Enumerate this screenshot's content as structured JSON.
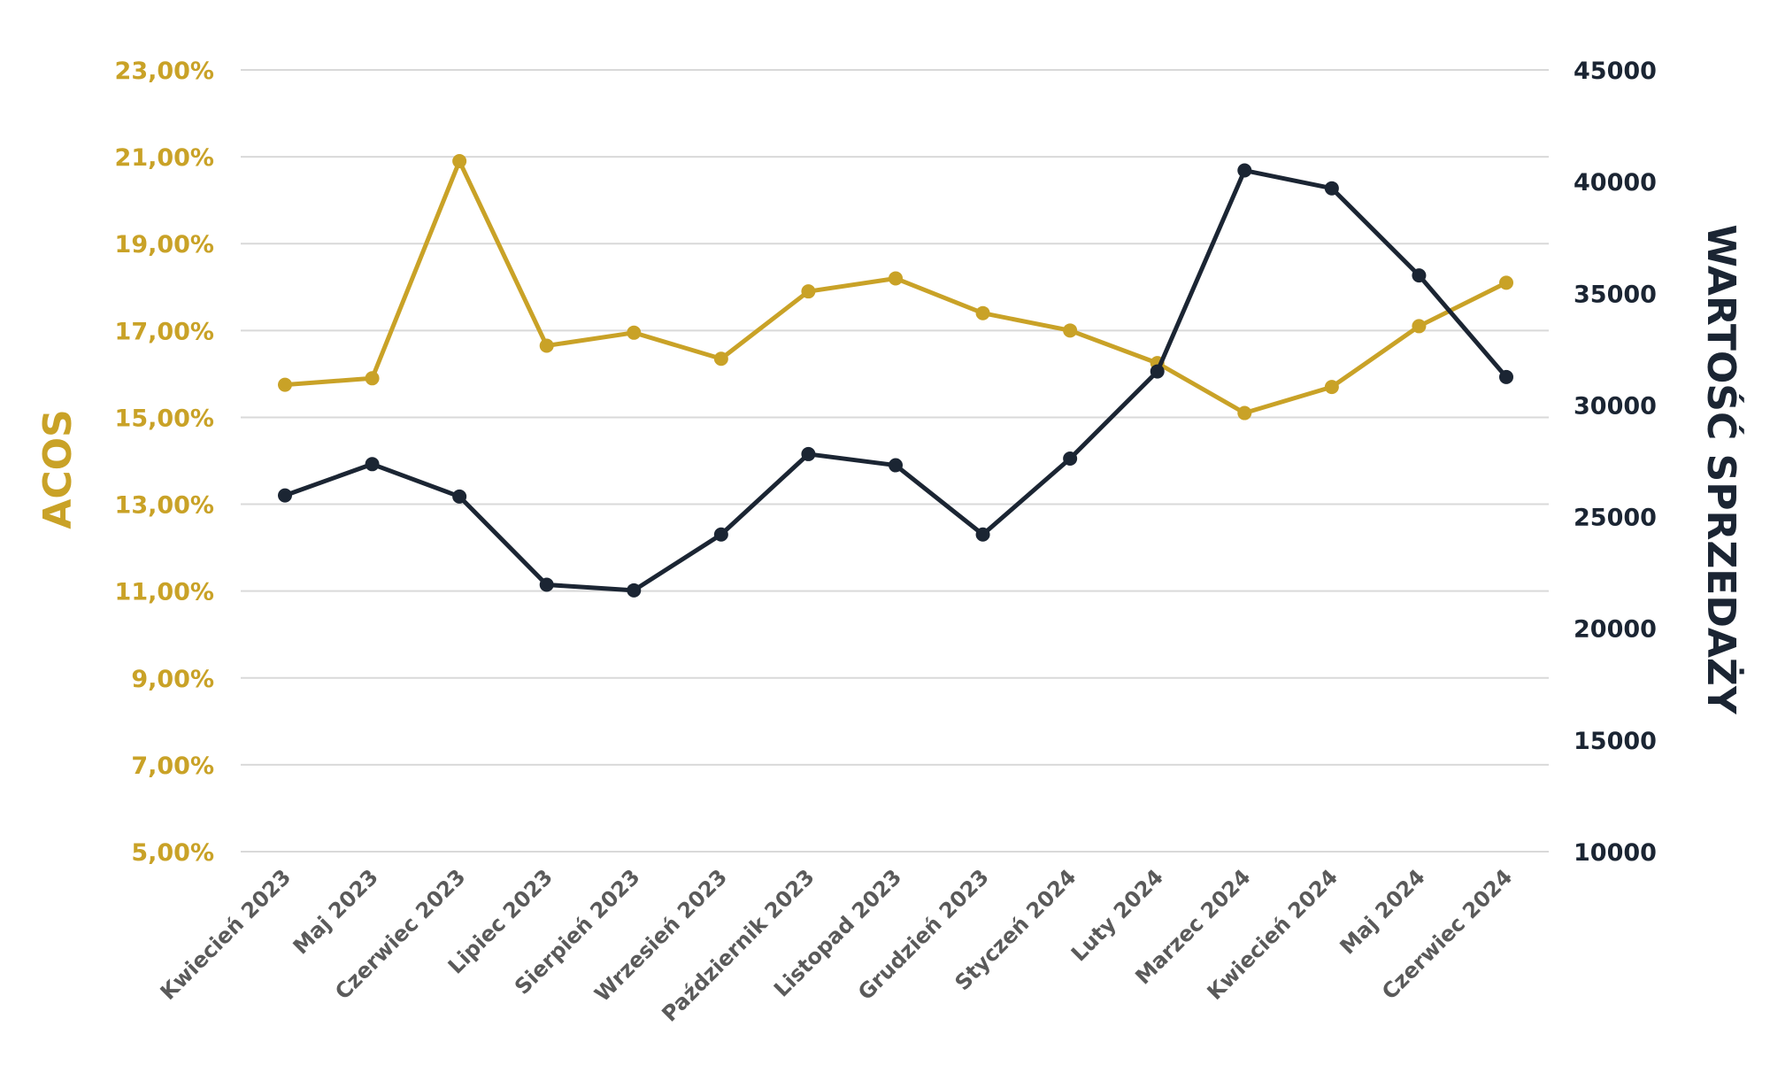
{
  "chart_data": {
    "type": "line",
    "categories": [
      "Kwiecień 2023",
      "Maj 2023",
      "Czerwiec 2023",
      "Lipiec 2023",
      "Sierpień 2023",
      "Wrzesień 2023",
      "Październik 2023",
      "Listopad 2023",
      "Grudzień 2023",
      "Styczeń 2024",
      "Luty 2024",
      "Marzec 2024",
      "Kwiecień 2024",
      "Maj 2024",
      "Czerwiec 2024"
    ],
    "series": [
      {
        "axis": "left",
        "color": "#c9a227",
        "values": [
          15.75,
          15.9,
          20.9,
          16.65,
          16.95,
          16.35,
          17.9,
          18.2,
          17.4,
          17.0,
          16.25,
          15.1,
          15.7,
          17.1,
          18.1
        ]
      },
      {
        "axis": "right",
        "color": "#1b2533",
        "values": [
          25950,
          27350,
          25900,
          21950,
          21700,
          24200,
          27800,
          27300,
          24200,
          27600,
          31500,
          40500,
          39700,
          35800,
          31250
        ]
      }
    ],
    "y_left": {
      "label": "ACOS",
      "ylim": [
        5,
        23
      ],
      "ticks": [
        "5,00%",
        "7,00%",
        "9,00%",
        "11,00%",
        "13,00%",
        "15,00%",
        "17,00%",
        "19,00%",
        "21,00%",
        "23,00%"
      ],
      "color": "#c9a227"
    },
    "y_right": {
      "label": "WARTOŚĆ SPRZEDAŻY",
      "ylim": [
        10000,
        45000
      ],
      "ticks": [
        "10000",
        "15000",
        "20000",
        "25000",
        "30000",
        "35000",
        "40000",
        "45000"
      ],
      "color": "#1b2533"
    },
    "grid": true
  }
}
